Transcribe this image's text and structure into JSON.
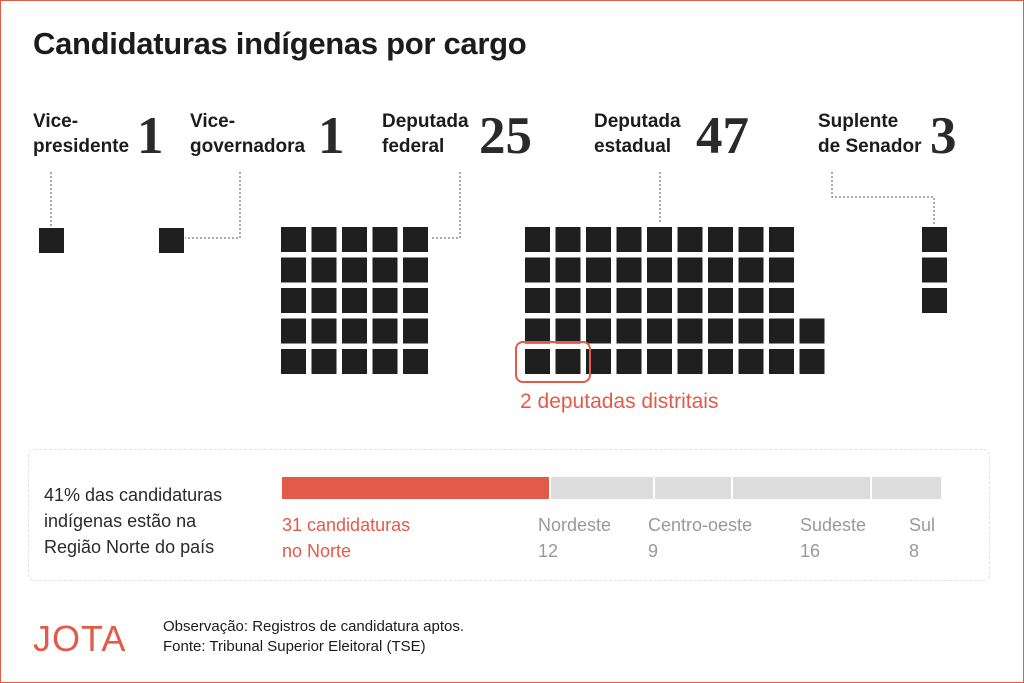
{
  "title": "Candidaturas indígenas por cargo",
  "highlight_note": "2 deputadas distritais",
  "region_summary": {
    "text_lines": [
      "41% das candidaturas",
      "indígenas estão na",
      "Região Norte do país"
    ]
  },
  "footnote": {
    "observacao": "Observação: Registros de candidatura aptos.",
    "fonte": "Fonte: Tribunal Superior Eleitoral (TSE)"
  },
  "logo": "JOTA",
  "colors": {
    "square": "#1f1f1f",
    "accent": "#e45a48",
    "bar_grey": "#dcdcdc",
    "region_label_grey": "#999999",
    "leader_line": "#555555"
  },
  "chart_data": [
    {
      "type": "waffle",
      "title": "Candidaturas indígenas por cargo",
      "categories": [
        {
          "label_lines": [
            "Vice-",
            "presidente"
          ],
          "value": 1
        },
        {
          "label_lines": [
            "Vice-",
            "governadora"
          ],
          "value": 1
        },
        {
          "label_lines": [
            "Deputada",
            "federal"
          ],
          "value": 25
        },
        {
          "label_lines": [
            "Deputada",
            "estadual"
          ],
          "value": 47
        },
        {
          "label_lines": [
            "Suplente",
            "de Senador"
          ],
          "value": 3
        }
      ],
      "highlight": {
        "category": "Deputada estadual",
        "count": 2,
        "label": "2 deputadas distritais"
      }
    },
    {
      "type": "bar",
      "stacked": true,
      "orientation": "horizontal",
      "categories": [
        "Norte",
        "Nordeste",
        "Centro-oeste",
        "Sudeste",
        "Sul"
      ],
      "values": [
        31,
        12,
        9,
        16,
        8
      ],
      "labels": [
        {
          "name_lines": [
            "31 candidaturas",
            "no Norte"
          ]
        },
        {
          "name_lines": [
            "Nordeste",
            "12"
          ]
        },
        {
          "name_lines": [
            "Centro-oeste",
            "9"
          ]
        },
        {
          "name_lines": [
            "Sudeste",
            "16"
          ]
        },
        {
          "name_lines": [
            "Sul",
            "8"
          ]
        }
      ]
    }
  ]
}
